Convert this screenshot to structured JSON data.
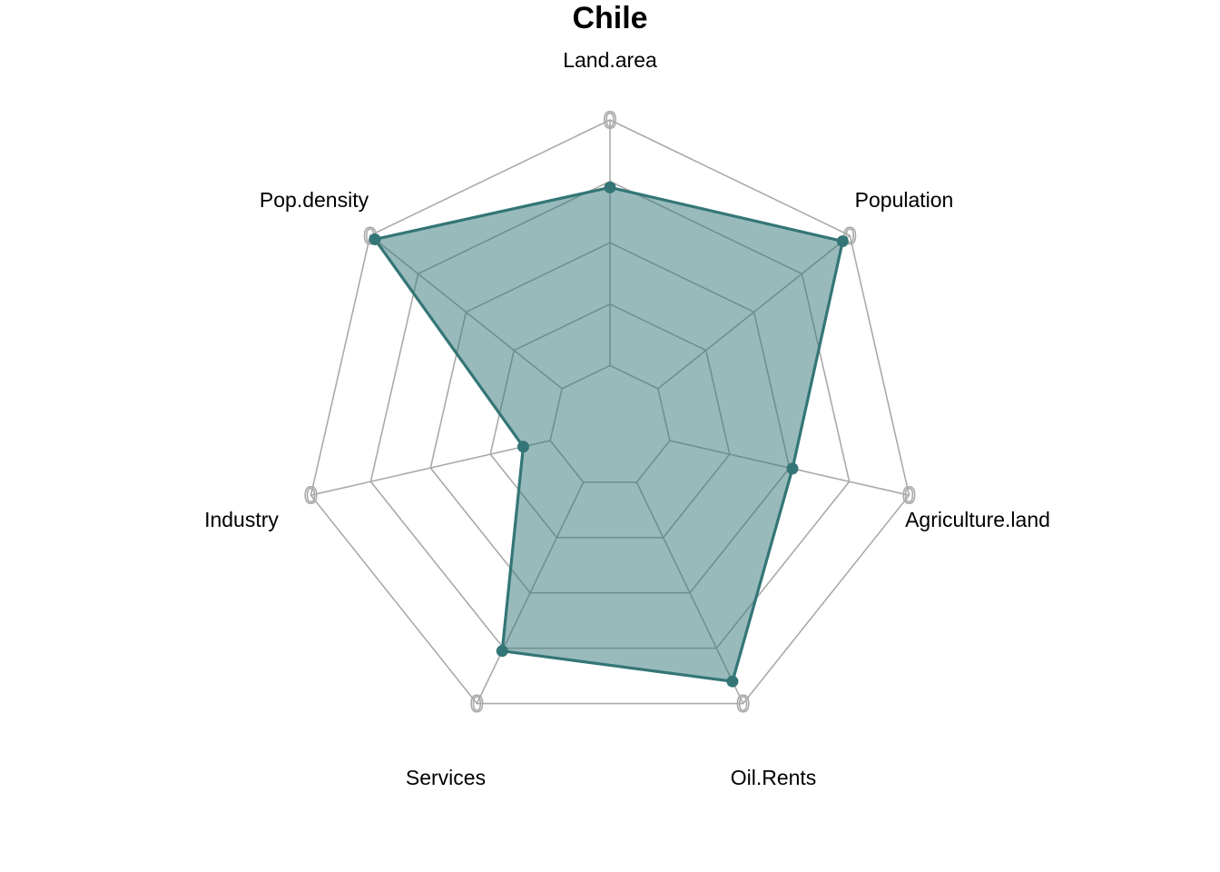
{
  "chart_data": {
    "type": "radar",
    "title": "Chile",
    "axes": [
      "Land.area",
      "Population",
      "Agriculture.land",
      "Oil.Rents",
      "Services",
      "Industry",
      "Pop.density"
    ],
    "range": [
      0,
      1
    ],
    "grid_levels": 5,
    "axis_max_label": "0",
    "series": [
      {
        "values": [
          0.78,
          0.97,
          0.61,
          0.92,
          0.81,
          0.29,
          0.98
        ],
        "line_color": "#347677",
        "fill_color": "#347677",
        "fill_opacity": 0.5
      }
    ],
    "grid": true,
    "legend": "none"
  }
}
